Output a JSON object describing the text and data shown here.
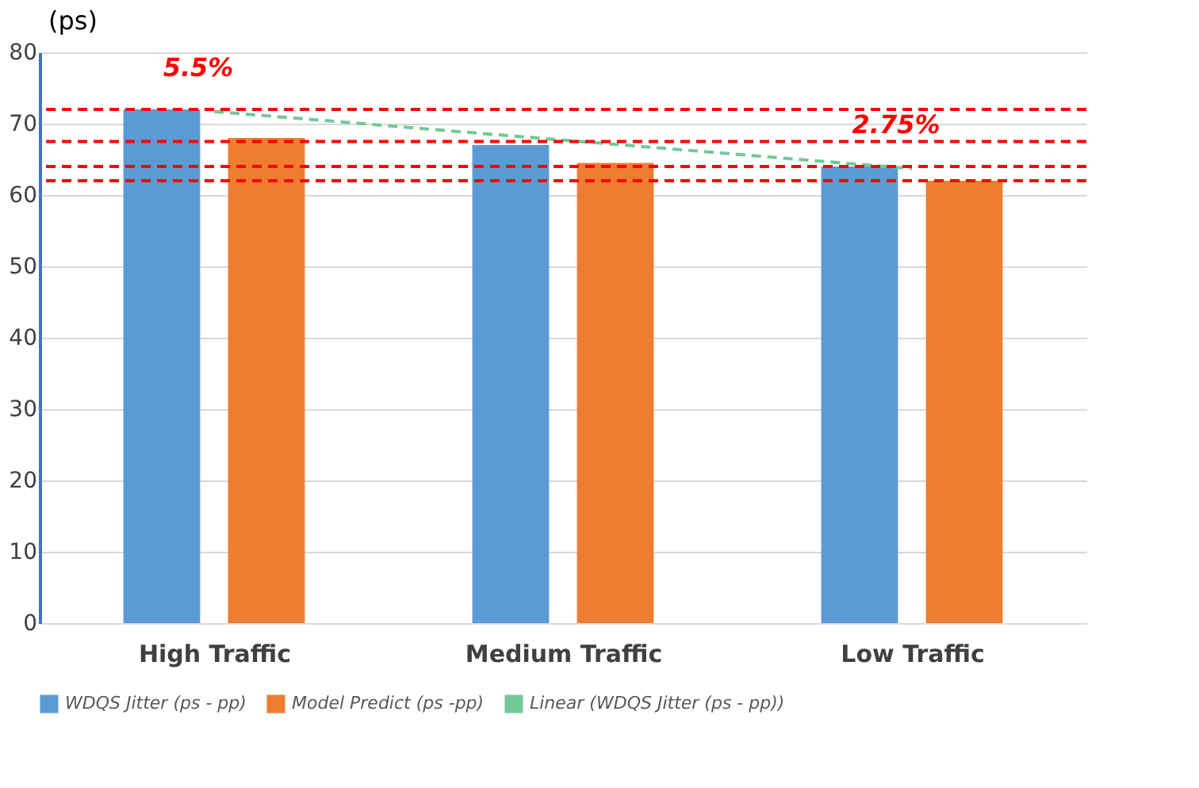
{
  "chart_data": {
    "type": "bar",
    "ylabel": "(ps)",
    "categories": [
      "High Traffic",
      "Medium Traffic",
      "Low Traffic"
    ],
    "series": [
      {
        "name": "WDQS Jitter (ps - pp)",
        "color": "#5b9bd5",
        "values": [
          72,
          67,
          64
        ]
      },
      {
        "name": "Model Predict (ps -pp)",
        "color": "#ed7d31",
        "values": [
          68,
          64.5,
          62
        ]
      },
      {
        "name": "Linear (WDQS Jitter (ps - pp))",
        "type": "line",
        "color": "#70c997",
        "line_style": "dashed",
        "values": [
          71.7,
          67.7,
          63.7
        ]
      }
    ],
    "ylim": [
      0,
      80
    ],
    "yticks": [
      0,
      10,
      20,
      30,
      40,
      50,
      60,
      70,
      80
    ],
    "grid": "y",
    "legend": "bottom",
    "ref_lines": [
      {
        "axis": "y",
        "value": 72,
        "color": "#ff0000",
        "line_style": "dashed"
      },
      {
        "axis": "y",
        "value": 67.5,
        "color": "#ff0000",
        "line_style": "dashed"
      },
      {
        "axis": "y",
        "value": 64,
        "color": "#ff0000",
        "line_style": "dashed"
      },
      {
        "axis": "y",
        "value": 62,
        "color": "#ff0000",
        "line_style": "dashed"
      }
    ],
    "annotations": [
      {
        "text": "5.5%",
        "x": "High Traffic",
        "y": 72
      },
      {
        "text": "2.75%",
        "x": "Low Traffic",
        "y": 64
      }
    ]
  }
}
